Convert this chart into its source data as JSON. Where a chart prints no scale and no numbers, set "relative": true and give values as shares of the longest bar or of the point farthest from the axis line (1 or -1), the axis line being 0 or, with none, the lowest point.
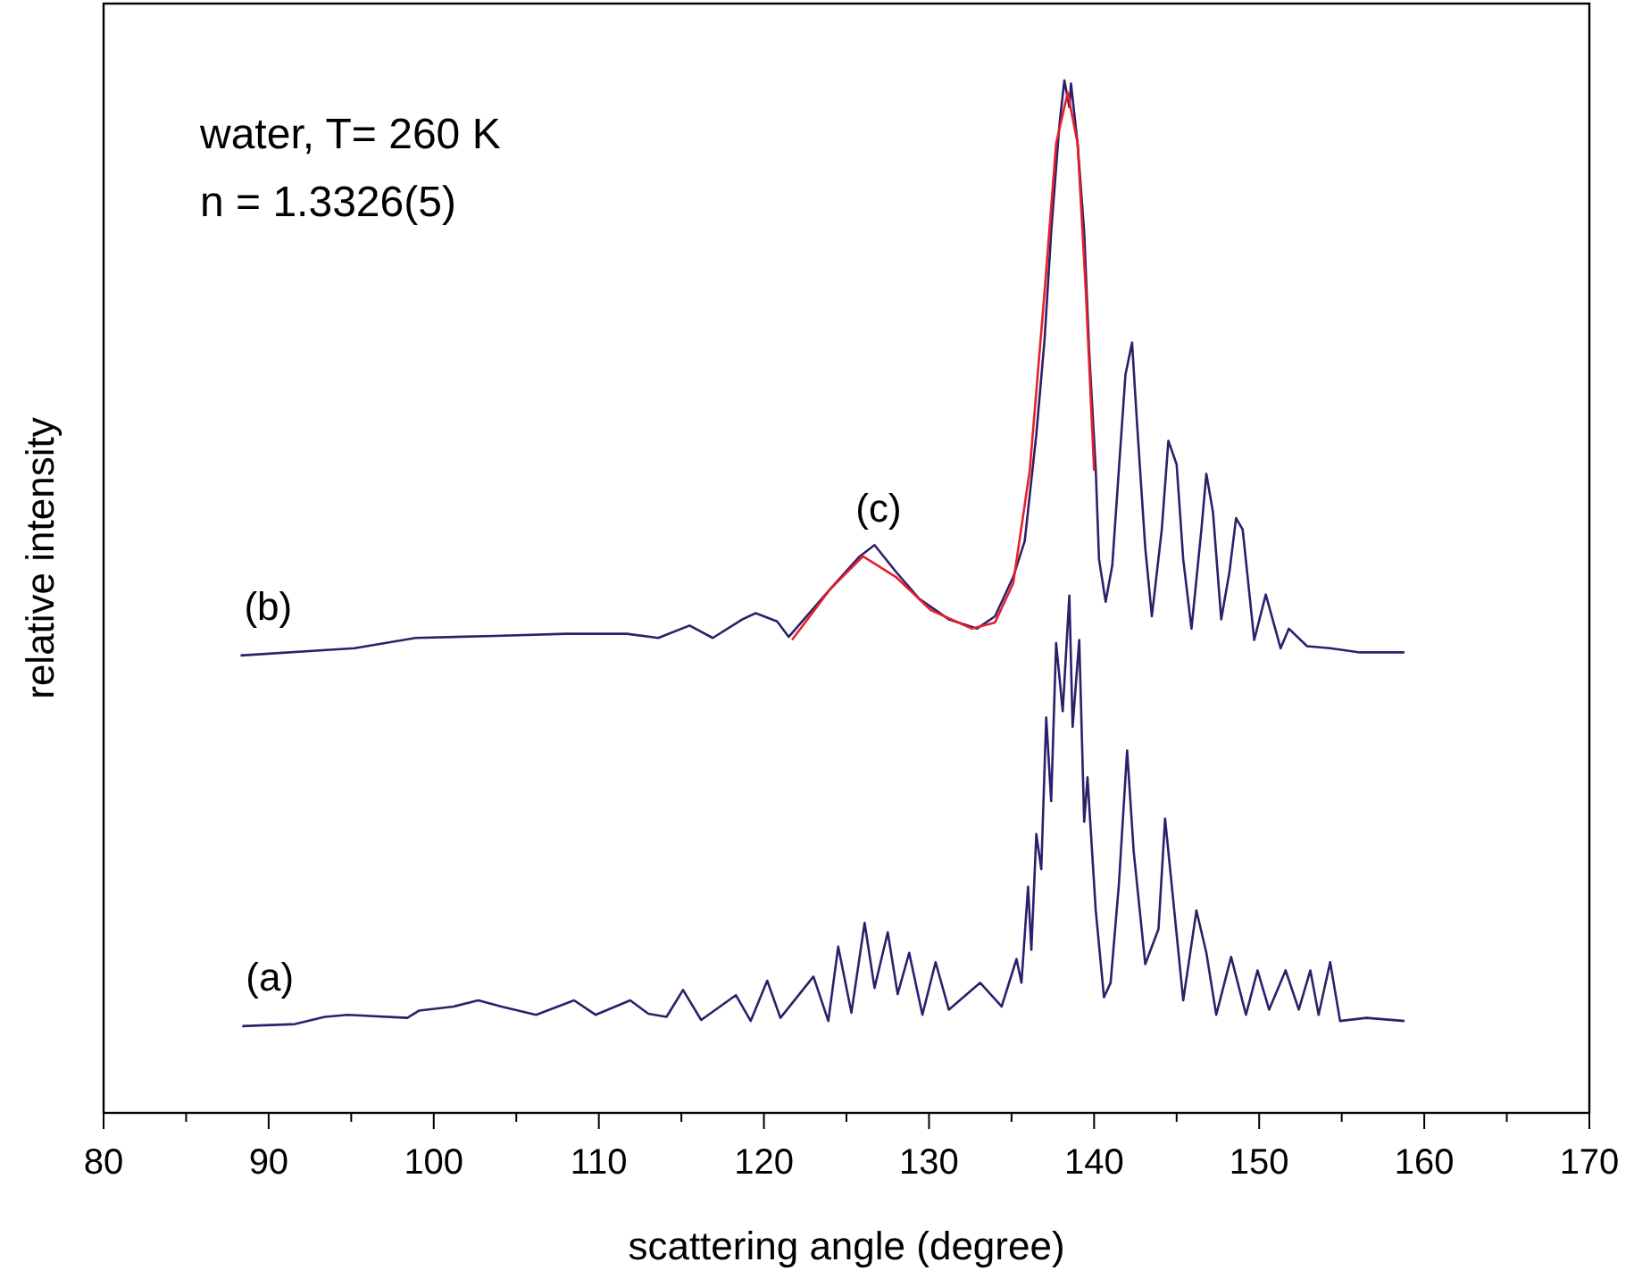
{
  "chart_data": {
    "type": "line",
    "relative": true,
    "xlabel": "scattering angle (degree)",
    "ylabel": "relative intensity",
    "xlim": [
      80,
      170
    ],
    "xticks": [
      80,
      {
        "value": 85,
        "label": null
      },
      90,
      {
        "value": 95,
        "label": null
      },
      100,
      {
        "value": 105,
        "label": null
      },
      110,
      {
        "value": 115,
        "label": null
      },
      120,
      {
        "value": 125,
        "label": null
      },
      130,
      {
        "value": 135,
        "label": null
      },
      140,
      {
        "value": 145,
        "label": null
      },
      150,
      {
        "value": 155,
        "label": null
      },
      160,
      {
        "value": 165,
        "label": null
      },
      170
    ],
    "tick_labels": "x",
    "grid": false,
    "marker": "none",
    "line_style": "solid",
    "annotations": [
      "water, T= 260 K",
      "n = 1.3326(5)",
      "(c)"
    ],
    "series": [
      {
        "name": "(a)",
        "color": "#2e1f6b",
        "x": [
          88.4,
          91.6,
          93.4,
          94.8,
          98.4,
          99.1,
          101.2,
          102.7,
          104.1,
          106.2,
          108.5,
          109.8,
          111.9,
          113.0,
          114.1,
          115.1,
          116.2,
          118.3,
          119.2,
          120.2,
          121.0,
          123.0,
          123.9,
          124.5,
          125.3,
          126.1,
          126.7,
          127.5,
          128.1,
          128.8,
          129.6,
          130.4,
          131.2,
          133.1,
          134.4,
          135.3,
          135.6,
          136.0,
          136.2,
          136.5,
          136.8,
          137.1,
          137.4,
          137.7,
          138.1,
          138.5,
          138.7,
          139.1,
          139.4,
          139.6,
          140.1,
          140.6,
          141.0,
          141.5,
          142.0,
          142.4,
          143.1,
          143.9,
          144.3,
          144.7,
          145.4,
          146.2,
          146.8,
          147.4,
          148.3,
          149.2,
          149.9,
          150.6,
          151.6,
          152.4,
          153.1,
          153.6,
          154.3,
          154.9,
          156.5,
          158.8
        ],
        "values": [
          0.084,
          0.086,
          0.093,
          0.095,
          0.092,
          0.099,
          0.103,
          0.109,
          0.103,
          0.095,
          0.109,
          0.095,
          0.109,
          0.096,
          0.093,
          0.119,
          0.09,
          0.114,
          0.089,
          0.128,
          0.092,
          0.132,
          0.089,
          0.161,
          0.097,
          0.184,
          0.121,
          0.175,
          0.115,
          0.155,
          0.095,
          0.146,
          0.1,
          0.126,
          0.103,
          0.149,
          0.126,
          0.219,
          0.158,
          0.27,
          0.236,
          0.383,
          0.302,
          0.455,
          0.389,
          0.501,
          0.374,
          0.458,
          0.282,
          0.325,
          0.196,
          0.112,
          0.126,
          0.221,
          0.351,
          0.253,
          0.144,
          0.178,
          0.285,
          0.221,
          0.109,
          0.196,
          0.155,
          0.095,
          0.151,
          0.095,
          0.138,
          0.1,
          0.138,
          0.1,
          0.138,
          0.095,
          0.146,
          0.089,
          0.092,
          0.089
        ]
      },
      {
        "name": "(b)",
        "color": "#2e1f6b",
        "x": [
          88.3,
          95.2,
          98.9,
          103.7,
          108.0,
          111.7,
          113.6,
          115.5,
          116.9,
          118.7,
          119.5,
          120.8,
          121.5,
          124.0,
          125.8,
          126.7,
          128.0,
          129.4,
          131.2,
          132.9,
          134.0,
          135.1,
          135.8,
          136.5,
          137.0,
          137.4,
          137.9,
          138.2,
          138.5,
          138.6,
          139.0,
          139.4,
          139.7,
          140.1,
          140.3,
          140.7,
          141.1,
          141.5,
          141.9,
          142.3,
          142.6,
          143.1,
          143.5,
          144.1,
          144.5,
          145.0,
          145.4,
          145.9,
          146.5,
          146.8,
          147.2,
          147.7,
          148.2,
          148.6,
          149.0,
          149.7,
          150.4,
          151.3,
          151.8,
          152.9,
          154.3,
          156.1,
          158.8
        ],
        "values": [
          0.443,
          0.45,
          0.46,
          0.462,
          0.464,
          0.464,
          0.46,
          0.472,
          0.46,
          0.478,
          0.484,
          0.476,
          0.461,
          0.507,
          0.539,
          0.55,
          0.524,
          0.498,
          0.478,
          0.469,
          0.481,
          0.519,
          0.554,
          0.657,
          0.749,
          0.853,
          0.957,
          1.0,
          0.974,
          0.997,
          0.939,
          0.853,
          0.738,
          0.623,
          0.536,
          0.495,
          0.53,
          0.623,
          0.715,
          0.746,
          0.668,
          0.547,
          0.481,
          0.565,
          0.651,
          0.628,
          0.536,
          0.469,
          0.565,
          0.619,
          0.582,
          0.478,
          0.524,
          0.576,
          0.565,
          0.458,
          0.502,
          0.45,
          0.469,
          0.452,
          0.45,
          0.446,
          0.446
        ]
      },
      {
        "color": "#e8202a",
        "x": [
          121.7,
          124.0,
          126.0,
          128.0,
          130.1,
          132.6,
          134.0,
          135.1,
          136.1,
          137.0,
          137.7,
          138.4,
          139.0,
          139.5,
          140.0
        ],
        "values": [
          0.458,
          0.507,
          0.539,
          0.519,
          0.487,
          0.469,
          0.475,
          0.513,
          0.622,
          0.795,
          0.939,
          0.988,
          0.939,
          0.795,
          0.622
        ]
      }
    ]
  }
}
